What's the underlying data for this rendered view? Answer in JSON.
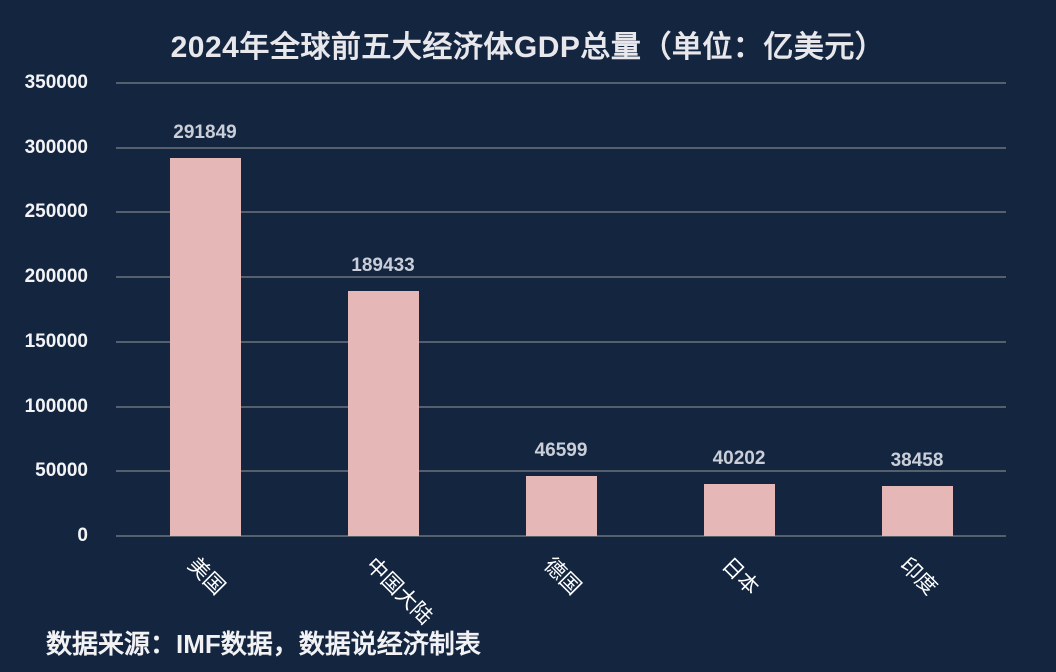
{
  "chart_data": {
    "type": "bar",
    "title": "2024年全球前五大经济体GDP总量（单位：亿美元）",
    "categories": [
      "美国",
      "中国大陆",
      "德国",
      "日本",
      "印度"
    ],
    "values": [
      291849,
      189433,
      46599,
      40202,
      38458
    ],
    "value_labels": [
      "291849",
      "189433",
      "46599",
      "40202",
      "38458"
    ],
    "xlabel": "",
    "ylabel": "",
    "ylim": [
      0,
      350000
    ],
    "yticks": [
      "350000",
      "300000",
      "250000",
      "200000",
      "150000",
      "100000",
      "50000",
      "0"
    ],
    "grid": true,
    "legend": "none",
    "bar_color": "#e6b7b7",
    "background": "#13253f"
  },
  "footer": {
    "source": "数据来源：IMF数据，数据说经济制表"
  }
}
